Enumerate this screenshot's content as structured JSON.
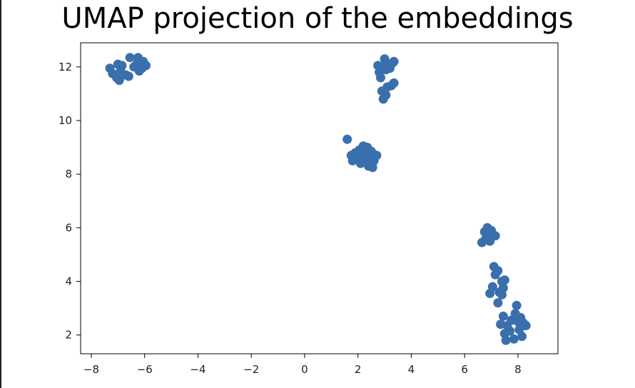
{
  "chart_data": {
    "type": "scatter",
    "title": "UMAP projection of the embeddings",
    "xlabel": "",
    "ylabel": "",
    "xlim": [
      -8.4,
      9.5
    ],
    "ylim": [
      1.3,
      12.9
    ],
    "xticks": [
      -8,
      -6,
      -4,
      -2,
      0,
      2,
      4,
      6,
      8
    ],
    "yticks": [
      2,
      4,
      6,
      8,
      10,
      12
    ],
    "xtick_labels": [
      "−8",
      "−6",
      "−4",
      "−2",
      "0",
      "2",
      "4",
      "6",
      "8"
    ],
    "ytick_labels": [
      "2",
      "4",
      "6",
      "8",
      "10",
      "12"
    ],
    "grid": false,
    "marker_color": "#3a6fad",
    "points": [
      {
        "x": -7.3,
        "y": 11.95
      },
      {
        "x": -7.2,
        "y": 11.75
      },
      {
        "x": -7.05,
        "y": 11.6
      },
      {
        "x": -7.0,
        "y": 12.1
      },
      {
        "x": -6.95,
        "y": 11.5
      },
      {
        "x": -6.9,
        "y": 11.85
      },
      {
        "x": -6.85,
        "y": 12.05
      },
      {
        "x": -6.7,
        "y": 11.7
      },
      {
        "x": -6.6,
        "y": 11.65
      },
      {
        "x": -6.55,
        "y": 12.35
      },
      {
        "x": -6.4,
        "y": 12.0
      },
      {
        "x": -6.3,
        "y": 12.1
      },
      {
        "x": -6.25,
        "y": 12.35
      },
      {
        "x": -6.2,
        "y": 11.85
      },
      {
        "x": -6.1,
        "y": 11.95
      },
      {
        "x": -6.05,
        "y": 12.2
      },
      {
        "x": -5.95,
        "y": 12.05
      },
      {
        "x": 2.75,
        "y": 12.05
      },
      {
        "x": 2.8,
        "y": 11.8
      },
      {
        "x": 2.85,
        "y": 11.6
      },
      {
        "x": 2.9,
        "y": 12.0
      },
      {
        "x": 3.0,
        "y": 12.3
      },
      {
        "x": 3.05,
        "y": 11.9
      },
      {
        "x": 3.1,
        "y": 12.1
      },
      {
        "x": 3.2,
        "y": 11.95
      },
      {
        "x": 3.3,
        "y": 12.15
      },
      {
        "x": 3.35,
        "y": 12.2
      },
      {
        "x": 2.9,
        "y": 11.1
      },
      {
        "x": 2.95,
        "y": 10.8
      },
      {
        "x": 3.05,
        "y": 10.95
      },
      {
        "x": 3.1,
        "y": 11.25
      },
      {
        "x": 3.25,
        "y": 11.3
      },
      {
        "x": 3.35,
        "y": 11.4
      },
      {
        "x": 1.6,
        "y": 9.3
      },
      {
        "x": 1.75,
        "y": 8.7
      },
      {
        "x": 1.8,
        "y": 8.5
      },
      {
        "x": 1.9,
        "y": 8.8
      },
      {
        "x": 2.0,
        "y": 8.6
      },
      {
        "x": 2.05,
        "y": 8.9
      },
      {
        "x": 2.1,
        "y": 8.4
      },
      {
        "x": 2.15,
        "y": 8.75
      },
      {
        "x": 2.2,
        "y": 9.05
      },
      {
        "x": 2.25,
        "y": 8.55
      },
      {
        "x": 2.3,
        "y": 8.8
      },
      {
        "x": 2.35,
        "y": 9.0
      },
      {
        "x": 2.4,
        "y": 8.45
      },
      {
        "x": 2.45,
        "y": 8.65
      },
      {
        "x": 2.5,
        "y": 8.85
      },
      {
        "x": 2.55,
        "y": 8.25
      },
      {
        "x": 2.6,
        "y": 8.5
      },
      {
        "x": 2.7,
        "y": 8.7
      },
      {
        "x": 2.4,
        "y": 8.3
      },
      {
        "x": 6.65,
        "y": 5.45
      },
      {
        "x": 6.75,
        "y": 5.85
      },
      {
        "x": 6.8,
        "y": 5.6
      },
      {
        "x": 6.85,
        "y": 6.0
      },
      {
        "x": 6.9,
        "y": 5.7
      },
      {
        "x": 6.95,
        "y": 5.5
      },
      {
        "x": 7.0,
        "y": 5.9
      },
      {
        "x": 7.05,
        "y": 5.75
      },
      {
        "x": 7.15,
        "y": 5.7
      },
      {
        "x": 7.1,
        "y": 4.55
      },
      {
        "x": 7.15,
        "y": 4.25
      },
      {
        "x": 7.05,
        "y": 3.8
      },
      {
        "x": 6.95,
        "y": 3.55
      },
      {
        "x": 7.25,
        "y": 4.4
      },
      {
        "x": 7.3,
        "y": 3.6
      },
      {
        "x": 7.25,
        "y": 3.2
      },
      {
        "x": 7.4,
        "y": 4.0
      },
      {
        "x": 7.45,
        "y": 3.75
      },
      {
        "x": 7.5,
        "y": 4.05
      },
      {
        "x": 7.4,
        "y": 3.5
      },
      {
        "x": 7.35,
        "y": 2.4
      },
      {
        "x": 7.45,
        "y": 2.7
      },
      {
        "x": 7.5,
        "y": 2.05
      },
      {
        "x": 7.55,
        "y": 1.8
      },
      {
        "x": 7.6,
        "y": 2.35
      },
      {
        "x": 7.7,
        "y": 2.15
      },
      {
        "x": 7.75,
        "y": 2.55
      },
      {
        "x": 7.85,
        "y": 1.85
      },
      {
        "x": 7.9,
        "y": 2.8
      },
      {
        "x": 7.95,
        "y": 3.1
      },
      {
        "x": 8.0,
        "y": 2.5
      },
      {
        "x": 8.05,
        "y": 2.2
      },
      {
        "x": 8.1,
        "y": 2.65
      },
      {
        "x": 8.2,
        "y": 2.45
      },
      {
        "x": 8.3,
        "y": 2.35
      },
      {
        "x": 8.15,
        "y": 1.95
      }
    ]
  }
}
